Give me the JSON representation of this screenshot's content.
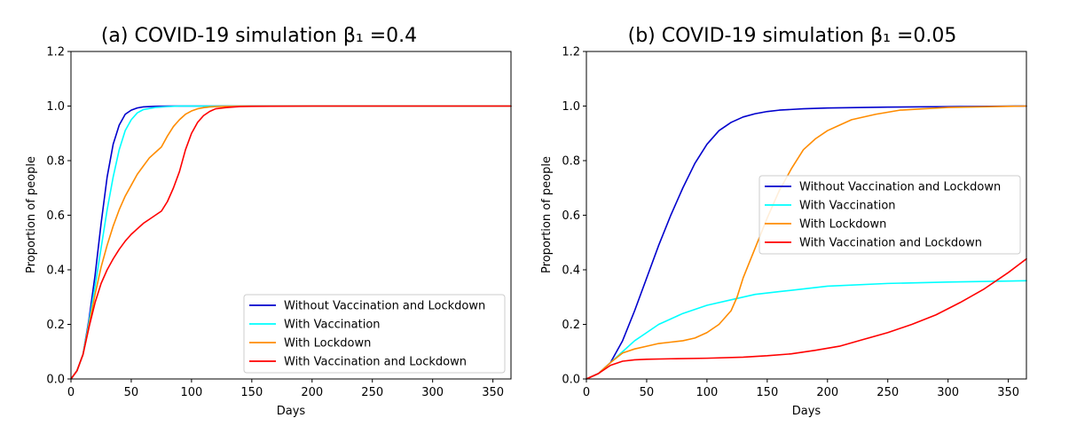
{
  "chart_data": [
    {
      "type": "line",
      "title": "(a) COVID-19 simulation β₁ =0.4",
      "xlabel": "Days",
      "ylabel": "Proportion of people",
      "xlim": [
        0,
        365
      ],
      "ylim": [
        0,
        1.2
      ],
      "xticks": [
        "0",
        "50",
        "100",
        "150",
        "200",
        "250",
        "300",
        "350"
      ],
      "yticks": [
        "0.0",
        "0.2",
        "0.4",
        "0.6",
        "0.8",
        "1.0",
        "1.2"
      ],
      "grid": false,
      "legend": "lower-right",
      "series": [
        {
          "name": "Without Vaccination and Lockdown",
          "color": "#0000cd",
          "x": [
            0,
            5,
            10,
            15,
            20,
            25,
            30,
            35,
            40,
            45,
            50,
            55,
            60,
            70,
            80,
            100,
            150,
            365
          ],
          "y": [
            0,
            0.03,
            0.09,
            0.22,
            0.38,
            0.57,
            0.74,
            0.86,
            0.93,
            0.97,
            0.985,
            0.993,
            0.997,
            0.999,
            1.0,
            1.0,
            1.0,
            1.0
          ]
        },
        {
          "name": "With Vaccination",
          "color": "#00ffff",
          "x": [
            0,
            5,
            10,
            15,
            20,
            25,
            30,
            35,
            40,
            45,
            50,
            55,
            60,
            70,
            80,
            90,
            100,
            150,
            365
          ],
          "y": [
            0,
            0.03,
            0.09,
            0.21,
            0.34,
            0.48,
            0.62,
            0.74,
            0.84,
            0.91,
            0.95,
            0.975,
            0.987,
            0.995,
            0.998,
            1.0,
            1.0,
            1.0,
            1.0
          ]
        },
        {
          "name": "With Lockdown",
          "color": "#ff8c00",
          "x": [
            0,
            5,
            10,
            15,
            20,
            25,
            30,
            35,
            40,
            45,
            50,
            55,
            60,
            65,
            70,
            75,
            80,
            85,
            90,
            95,
            100,
            105,
            110,
            115,
            120,
            130,
            140,
            150,
            200,
            365
          ],
          "y": [
            0,
            0.03,
            0.09,
            0.2,
            0.31,
            0.41,
            0.49,
            0.56,
            0.62,
            0.67,
            0.71,
            0.75,
            0.78,
            0.81,
            0.83,
            0.85,
            0.89,
            0.925,
            0.95,
            0.97,
            0.982,
            0.99,
            0.994,
            0.997,
            0.998,
            0.999,
            1.0,
            1.0,
            1.0,
            1.0
          ]
        },
        {
          "name": "With Vaccination and Lockdown",
          "color": "#ff0000",
          "x": [
            0,
            5,
            10,
            15,
            20,
            25,
            30,
            35,
            40,
            45,
            50,
            55,
            60,
            65,
            70,
            75,
            80,
            85,
            90,
            95,
            100,
            105,
            110,
            115,
            120,
            130,
            140,
            150,
            200,
            365
          ],
          "y": [
            0,
            0.03,
            0.09,
            0.19,
            0.28,
            0.35,
            0.4,
            0.44,
            0.475,
            0.505,
            0.53,
            0.55,
            0.57,
            0.585,
            0.6,
            0.615,
            0.65,
            0.7,
            0.76,
            0.84,
            0.9,
            0.94,
            0.965,
            0.98,
            0.99,
            0.995,
            0.998,
            0.999,
            1.0,
            1.0
          ]
        }
      ],
      "legend_entries": [
        "Without Vaccination and Lockdown",
        "With Vaccination",
        "With Lockdown",
        "With Vaccination and Lockdown"
      ]
    },
    {
      "type": "line",
      "title": "(b) COVID-19 simulation β₁ =0.05",
      "xlabel": "Days",
      "ylabel": "Proportion of people",
      "xlim": [
        0,
        365
      ],
      "ylim": [
        0,
        1.2
      ],
      "xticks": [
        "0",
        "50",
        "100",
        "150",
        "200",
        "250",
        "300",
        "350"
      ],
      "yticks": [
        "0.0",
        "0.2",
        "0.4",
        "0.6",
        "0.8",
        "1.0",
        "1.2"
      ],
      "grid": false,
      "legend": "center-right",
      "series": [
        {
          "name": "Without Vaccination and Lockdown",
          "color": "#0000cd",
          "x": [
            0,
            10,
            20,
            30,
            40,
            50,
            60,
            70,
            80,
            90,
            100,
            110,
            120,
            130,
            140,
            150,
            160,
            180,
            200,
            250,
            300,
            365
          ],
          "y": [
            0,
            0.02,
            0.06,
            0.14,
            0.25,
            0.37,
            0.49,
            0.6,
            0.7,
            0.79,
            0.86,
            0.91,
            0.94,
            0.96,
            0.972,
            0.98,
            0.985,
            0.99,
            0.993,
            0.996,
            0.998,
            1.0
          ]
        },
        {
          "name": "With Vaccination",
          "color": "#00ffff",
          "x": [
            0,
            10,
            20,
            30,
            40,
            50,
            60,
            70,
            80,
            90,
            100,
            120,
            140,
            160,
            180,
            200,
            250,
            300,
            365
          ],
          "y": [
            0,
            0.02,
            0.06,
            0.1,
            0.14,
            0.17,
            0.2,
            0.22,
            0.24,
            0.255,
            0.27,
            0.29,
            0.31,
            0.32,
            0.33,
            0.34,
            0.35,
            0.355,
            0.36
          ]
        },
        {
          "name": "With Lockdown",
          "color": "#ff8c00",
          "x": [
            0,
            10,
            20,
            30,
            40,
            50,
            60,
            70,
            80,
            90,
            100,
            110,
            120,
            125,
            130,
            140,
            150,
            160,
            170,
            180,
            190,
            200,
            210,
            220,
            240,
            260,
            280,
            300,
            365
          ],
          "y": [
            0,
            0.02,
            0.06,
            0.095,
            0.11,
            0.12,
            0.13,
            0.135,
            0.14,
            0.15,
            0.17,
            0.2,
            0.25,
            0.3,
            0.37,
            0.48,
            0.59,
            0.69,
            0.77,
            0.84,
            0.88,
            0.91,
            0.93,
            0.95,
            0.97,
            0.985,
            0.99,
            0.995,
            1.0
          ]
        },
        {
          "name": "With Vaccination and Lockdown",
          "color": "#ff0000",
          "x": [
            0,
            10,
            20,
            30,
            40,
            50,
            70,
            100,
            130,
            150,
            170,
            190,
            210,
            230,
            250,
            270,
            290,
            310,
            330,
            350,
            365
          ],
          "y": [
            0,
            0.02,
            0.05,
            0.065,
            0.07,
            0.072,
            0.074,
            0.076,
            0.08,
            0.085,
            0.092,
            0.105,
            0.12,
            0.145,
            0.17,
            0.2,
            0.235,
            0.28,
            0.33,
            0.39,
            0.44
          ]
        }
      ],
      "legend_entries": [
        "Without Vaccination and Lockdown",
        "With Vaccination",
        "With Lockdown",
        "With Vaccination and Lockdown"
      ]
    }
  ]
}
